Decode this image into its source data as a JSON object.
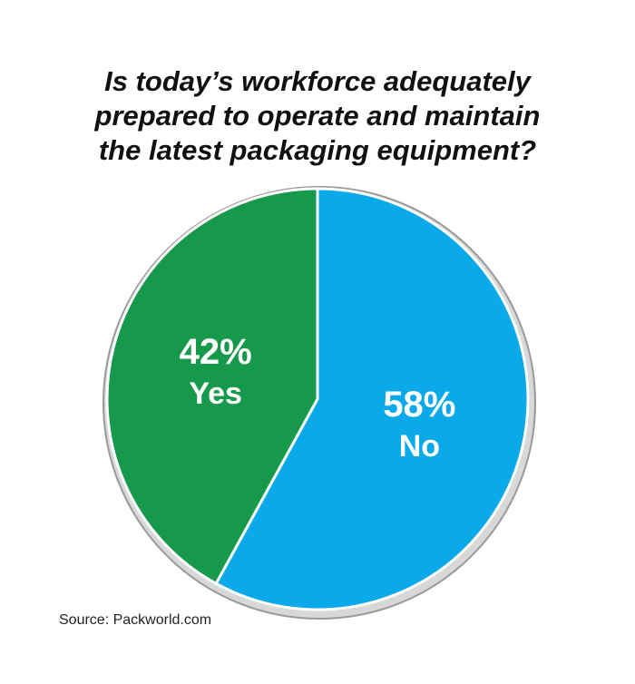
{
  "chart_data": {
    "type": "pie",
    "title": [
      "Is today’s workforce adequately",
      "prepared to operate and maintain",
      "the latest packaging equipment?"
    ],
    "categories": [
      "Yes",
      "No"
    ],
    "values": [
      42,
      58
    ],
    "value_labels": [
      "42%",
      "58%"
    ],
    "colors": [
      "#16994a",
      "#0aa9e9"
    ],
    "source": "Source: Packworld.com"
  }
}
